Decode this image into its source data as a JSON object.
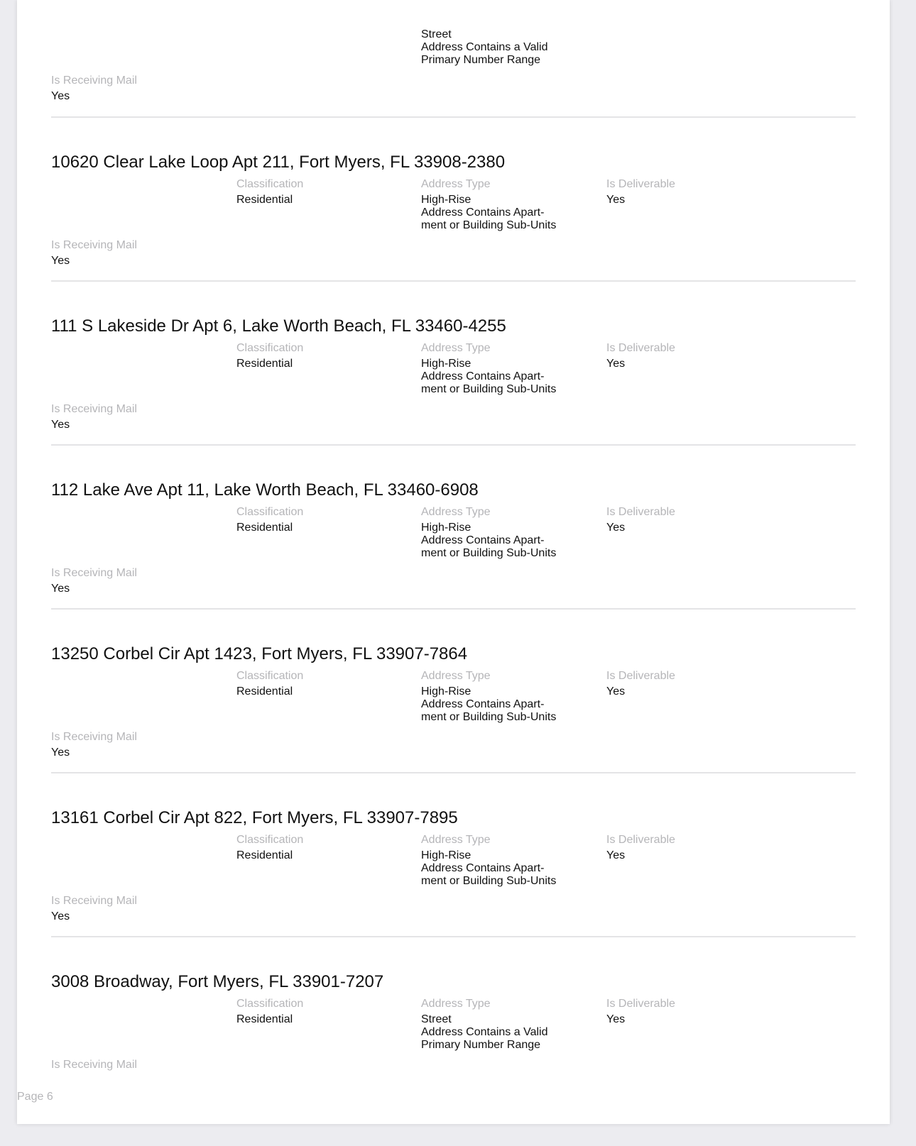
{
  "labels": {
    "classification": "Classification",
    "address_type": "Address Type",
    "is_deliverable": "Is Deliverable",
    "is_receiving_mail": "Is Receiving Mail"
  },
  "partial_top": {
    "address_type_lines": [
      "Street",
      "Address Contains a Valid",
      "Primary Number Range"
    ],
    "is_receiving_mail": "Yes"
  },
  "records": [
    {
      "address": "10620 Clear Lake Loop Apt 211, Fort Myers, FL 33908-2380",
      "classification": "Residential",
      "address_type_lines": [
        "High-Rise",
        "Address Contains Apart-",
        "ment or Building Sub-Units"
      ],
      "is_deliverable": "Yes",
      "is_receiving_mail": "Yes"
    },
    {
      "address": "111 S Lakeside Dr Apt 6, Lake Worth Beach, FL 33460-4255",
      "classification": "Residential",
      "address_type_lines": [
        "High-Rise",
        "Address Contains Apart-",
        "ment or Building Sub-Units"
      ],
      "is_deliverable": "Yes",
      "is_receiving_mail": "Yes"
    },
    {
      "address": "112 Lake Ave Apt 11, Lake Worth Beach, FL 33460-6908",
      "classification": "Residential",
      "address_type_lines": [
        "High-Rise",
        "Address Contains Apart-",
        "ment or Building Sub-Units"
      ],
      "is_deliverable": "Yes",
      "is_receiving_mail": "Yes"
    },
    {
      "address": "13250 Corbel Cir Apt 1423, Fort Myers, FL 33907-7864",
      "classification": "Residential",
      "address_type_lines": [
        "High-Rise",
        "Address Contains Apart-",
        "ment or Building Sub-Units"
      ],
      "is_deliverable": "Yes",
      "is_receiving_mail": "Yes"
    },
    {
      "address": "13161 Corbel Cir Apt 822, Fort Myers, FL 33907-7895",
      "classification": "Residential",
      "address_type_lines": [
        "High-Rise",
        "Address Contains Apart-",
        "ment or Building Sub-Units"
      ],
      "is_deliverable": "Yes",
      "is_receiving_mail": "Yes"
    },
    {
      "address": "3008 Broadway, Fort Myers, FL 33901-7207",
      "classification": "Residential",
      "address_type_lines": [
        "Street",
        "Address Contains a Valid",
        "Primary Number Range"
      ],
      "is_deliverable": "Yes"
    }
  ],
  "footer": {
    "page_label": "Page 6"
  }
}
